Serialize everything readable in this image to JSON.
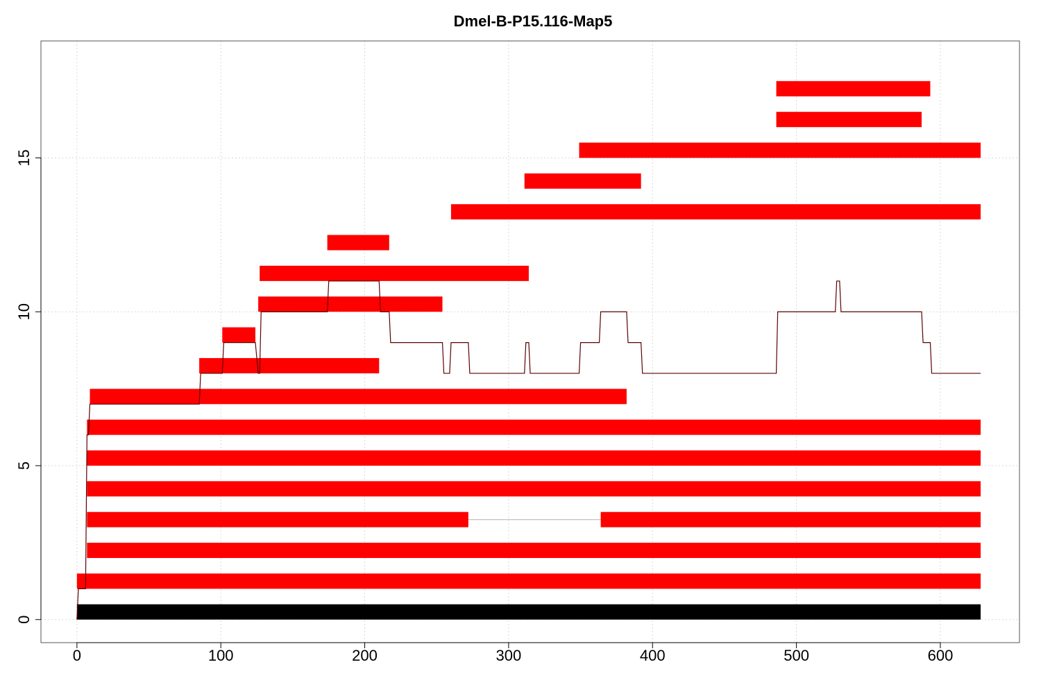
{
  "chart_data": {
    "type": "bar",
    "orientation": "horizontal-ranges",
    "title": "Dmel-B-P15.116-Map5",
    "xlabel": "",
    "ylabel": "",
    "xlim": [
      -25,
      655
    ],
    "ylim": [
      -0.75,
      18.8
    ],
    "x_ticks": [
      0,
      100,
      200,
      300,
      400,
      500,
      600
    ],
    "y_ticks": [
      0,
      5,
      10,
      15
    ],
    "grid": true,
    "colors": {
      "reference": "#000000",
      "segments": "#ff0000",
      "coverage": "#5a0000",
      "gap": "#b0b0b0"
    },
    "reference": {
      "start": 0,
      "end": 628,
      "level": 0
    },
    "segments": [
      {
        "level": 1,
        "start": 0,
        "end": 628
      },
      {
        "level": 2,
        "start": 7,
        "end": 628
      },
      {
        "level": 3,
        "start": 7,
        "end": 272
      },
      {
        "level": 3,
        "start": 364,
        "end": 628
      },
      {
        "level": 4,
        "start": 7,
        "end": 628
      },
      {
        "level": 5,
        "start": 7,
        "end": 628
      },
      {
        "level": 6,
        "start": 7,
        "end": 628
      },
      {
        "level": 7,
        "start": 9,
        "end": 382
      },
      {
        "level": 8,
        "start": 85,
        "end": 210
      },
      {
        "level": 9,
        "start": 101,
        "end": 124
      },
      {
        "level": 10,
        "start": 126,
        "end": 254
      },
      {
        "level": 11,
        "start": 127,
        "end": 314
      },
      {
        "level": 12,
        "start": 174,
        "end": 217
      },
      {
        "level": 13,
        "start": 260,
        "end": 628
      },
      {
        "level": 14,
        "start": 311,
        "end": 392
      },
      {
        "level": 15,
        "start": 349,
        "end": 628
      },
      {
        "level": 16,
        "start": 486,
        "end": 587
      },
      {
        "level": 17,
        "start": 486,
        "end": 593
      }
    ],
    "gaps": [
      {
        "level": 3,
        "start": 272,
        "end": 364
      }
    ],
    "coverage": {
      "x": [
        0,
        0.5,
        1,
        6,
        7,
        8,
        9,
        85,
        86,
        101,
        102,
        124,
        126,
        127,
        128,
        174,
        175,
        210,
        211,
        217,
        218,
        254,
        255,
        259,
        260,
        272,
        273,
        311,
        312,
        314,
        315,
        349,
        350,
        363,
        364,
        382,
        383,
        392,
        393,
        486,
        487,
        527,
        528,
        530,
        531,
        587,
        588,
        593,
        594,
        628
      ],
      "y": [
        0,
        0.5,
        1,
        1,
        6,
        6,
        7,
        7,
        8,
        8,
        9,
        9,
        8,
        8,
        10,
        10,
        11,
        11,
        10,
        10,
        9,
        9,
        8,
        8,
        9,
        9,
        8,
        8,
        9,
        9,
        8,
        8,
        9,
        9,
        10,
        10,
        9,
        9,
        8,
        8,
        10,
        10,
        11,
        11,
        10,
        10,
        9,
        9,
        8,
        8
      ]
    }
  }
}
